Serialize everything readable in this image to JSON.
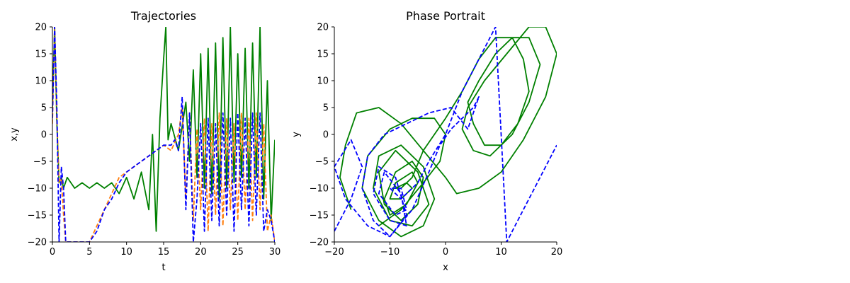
{
  "chart_data": [
    {
      "type": "line",
      "title": "Trajectories",
      "xlabel": "t",
      "ylabel": "x,y",
      "xlim": [
        0,
        30
      ],
      "ylim": [
        -20,
        20
      ],
      "xticks": [
        "0",
        "5",
        "10",
        "15",
        "20",
        "25",
        "30"
      ],
      "yticks": [
        "−20",
        "−15",
        "−10",
        "−5",
        "0",
        "5",
        "10",
        "15",
        "20"
      ],
      "grid": false,
      "series": [
        {
          "color": "#008000",
          "dash": "solid",
          "x": [
            0,
            0.3,
            0.6,
            0.9,
            1.2,
            1.5,
            2,
            3,
            4,
            5,
            6,
            7,
            8,
            9,
            10,
            11,
            12,
            13,
            13.5,
            14,
            14.5,
            15,
            15.3,
            15.6,
            16,
            17,
            18,
            18.5,
            19,
            19.5,
            20,
            20.5,
            21,
            21.5,
            22,
            22.5,
            23,
            23.5,
            24,
            24.5,
            25,
            25.5,
            26,
            26.5,
            27,
            27.5,
            28,
            28.5,
            29,
            29.5,
            30
          ],
          "values": [
            5,
            20,
            2,
            -9,
            -8,
            -10,
            -8,
            -10,
            -9,
            -10,
            -9,
            -10,
            -9,
            -11,
            -8,
            -12,
            -7,
            -14,
            0,
            -18,
            3,
            14,
            20,
            -1,
            2,
            -3,
            6,
            -5,
            12,
            -8,
            15,
            -10,
            16,
            -11,
            17,
            -12,
            18,
            -10,
            20,
            -9,
            15,
            -8,
            16,
            -10,
            17,
            -8,
            20,
            -12,
            10,
            -16,
            -1
          ]
        },
        {
          "color": "#ff7f0e",
          "dash": "dashed",
          "x": [
            0,
            0.3,
            0.6,
            0.9,
            1.2,
            1.5,
            1.8,
            2.1,
            5,
            7,
            9,
            11,
            13,
            15,
            16,
            17,
            17.5,
            18,
            18.5,
            19,
            19.5,
            20,
            20.5,
            21,
            21.5,
            22,
            22.5,
            23,
            23.5,
            24,
            24.5,
            25,
            25.5,
            26,
            26.5,
            27,
            27.5,
            28,
            28.5,
            29,
            29.5,
            30
          ],
          "values": [
            2,
            20,
            3,
            -9,
            -8,
            -15,
            -20,
            -20,
            -20,
            -14,
            -8,
            -6,
            -4,
            -2,
            -3,
            0,
            5,
            -12,
            4,
            -16,
            1,
            -14,
            3,
            -18,
            2,
            -15,
            4,
            -17,
            3,
            -14,
            2,
            -16,
            4,
            -14,
            3,
            -16,
            4,
            -14,
            2,
            -18,
            -15,
            -20
          ]
        },
        {
          "color": "#0000ff",
          "dash": "dashed",
          "x": [
            0,
            0.3,
            0.6,
            0.9,
            1.2,
            1.5,
            1.8,
            2.1,
            5,
            6,
            7,
            8,
            9,
            10,
            11,
            12,
            13,
            14,
            15,
            16,
            16.5,
            17,
            17.5,
            18,
            18.5,
            19,
            19.5,
            20,
            20.5,
            21,
            21.5,
            22,
            22.5,
            23,
            23.5,
            24,
            24.5,
            25,
            25.5,
            26,
            26.5,
            27,
            27.5,
            28,
            28.5,
            29,
            29.5,
            30
          ],
          "values": [
            3,
            20,
            5,
            -20,
            -6,
            -10,
            -20,
            -20,
            -20,
            -18,
            -14,
            -12,
            -9,
            -7,
            -6,
            -5,
            -4,
            -3,
            -2,
            -2,
            -1,
            -3,
            7,
            -14,
            4,
            -20,
            -12,
            2,
            -18,
            3,
            -16,
            2,
            -17,
            4,
            -15,
            3,
            -18,
            4,
            -14,
            3,
            -17,
            4,
            -15,
            4,
            -18,
            -14,
            -16,
            -20
          ]
        }
      ]
    },
    {
      "type": "line",
      "title": "Phase Portrait",
      "xlabel": "x",
      "ylabel": "y",
      "xlim": [
        -20,
        20
      ],
      "ylim": [
        -20,
        20
      ],
      "xticks": [
        "−20",
        "−10",
        "0",
        "10",
        "20"
      ],
      "yticks": [
        "−20",
        "−15",
        "−10",
        "−5",
        "0",
        "5",
        "10",
        "15",
        "20"
      ],
      "grid": false,
      "series": [
        {
          "color": "#008000",
          "dash": "solid",
          "x": [
            -12,
            -8,
            -4,
            -1,
            0,
            -2,
            -6,
            -10,
            -14,
            -15,
            -12,
            -8,
            -4,
            -2,
            -4,
            -8,
            -12,
            -13,
            -10,
            -6,
            -3,
            -5,
            -9,
            -12,
            -11,
            -8,
            -5,
            -4,
            -6,
            -9,
            -11,
            -10,
            -7,
            -5,
            -6,
            -9,
            -10,
            -8,
            -6,
            -7,
            -9,
            -8,
            -6,
            -4,
            0,
            3,
            6,
            9,
            12,
            14,
            15,
            13,
            10,
            7,
            5,
            4,
            6,
            9,
            12,
            15,
            17,
            15,
            12,
            8,
            5,
            3,
            4,
            7,
            11,
            15,
            18,
            20,
            18,
            14,
            10,
            6,
            2,
            0,
            -4,
            -8,
            -12,
            -16,
            -18,
            -19,
            -17
          ],
          "values": [
            -17,
            -14,
            -9,
            -5,
            0,
            3,
            3,
            1,
            -4,
            -10,
            -16,
            -19,
            -17,
            -12,
            -6,
            -2,
            -4,
            -10,
            -16,
            -17,
            -13,
            -7,
            -3,
            -7,
            -13,
            -16,
            -13,
            -8,
            -5,
            -7,
            -12,
            -15,
            -13,
            -9,
            -7,
            -9,
            -12,
            -12,
            -10,
            -9,
            -10,
            -10,
            -8,
            -3,
            3,
            8,
            14,
            18,
            18,
            14,
            8,
            2,
            -2,
            -2,
            2,
            6,
            10,
            15,
            18,
            18,
            13,
            6,
            0,
            -4,
            -3,
            1,
            5,
            10,
            15,
            20,
            20,
            15,
            7,
            -1,
            -7,
            -10,
            -11,
            -8,
            -3,
            2,
            5,
            4,
            -2,
            -8,
            -14
          ]
        },
        {
          "color": "#0000ff",
          "dash": "dashed",
          "x": [
            -20,
            -17,
            -15,
            -17,
            -20,
            -18,
            -14,
            -10,
            -6,
            -3,
            -1,
            1,
            3,
            5,
            6,
            4,
            1,
            -3,
            -7,
            -11,
            -14,
            -15,
            -13,
            -10,
            -7,
            -9,
            -12,
            -13,
            -10,
            -7,
            -8,
            -11,
            -12,
            -9,
            -7,
            -8,
            -10,
            -8,
            -5,
            -3,
            0,
            3,
            6,
            9,
            11,
            13,
            16,
            20
          ],
          "values": [
            -18,
            -12,
            -6,
            -1,
            -6,
            -12,
            -17,
            -19,
            -14,
            -7,
            -2,
            1,
            3,
            5,
            7,
            1,
            5,
            4,
            2,
            0,
            -4,
            -10,
            -16,
            -19,
            -15,
            -8,
            -6,
            -11,
            -16,
            -17,
            -11,
            -7,
            -11,
            -15,
            -14,
            -10,
            -10,
            -12,
            -9,
            -5,
            0,
            8,
            14,
            20,
            -20,
            -16,
            -10,
            -2
          ]
        }
      ]
    }
  ]
}
